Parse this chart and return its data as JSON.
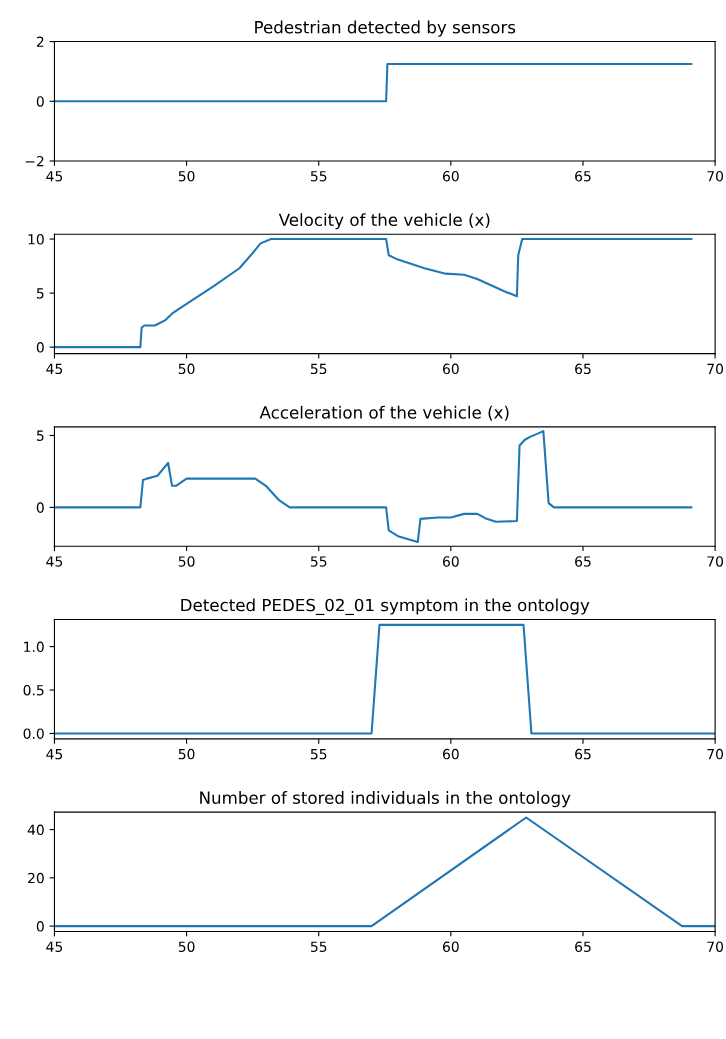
{
  "chart_data": [
    {
      "type": "line",
      "title": "Pedestrian detected by sensors",
      "xlim": [
        45,
        70
      ],
      "xticks": [
        45,
        50,
        55,
        60,
        65,
        70
      ],
      "ylim": [
        -2,
        2
      ],
      "yticks": [
        {
          "value": -2,
          "label": "−2"
        },
        0,
        2
      ],
      "series": [
        {
          "color": "#1f77b4",
          "x": [
            45,
            57.55,
            57.6,
            69.1
          ],
          "values": [
            0,
            0,
            1.25,
            1.25
          ]
        }
      ]
    },
    {
      "type": "line",
      "title": "Velocity of the vehicle (x)",
      "xlim": [
        45,
        70
      ],
      "xticks": [
        45,
        50,
        55,
        60,
        65,
        70
      ],
      "ylim": [
        -0.6,
        10.45
      ],
      "yticks": [
        0,
        5,
        10
      ],
      "series": [
        {
          "color": "#1f77b4",
          "x": [
            45,
            48.25,
            48.3,
            48.4,
            48.8,
            49.2,
            49.5,
            50,
            51,
            52,
            52.5,
            52.8,
            53.2,
            57.55,
            57.65,
            58,
            59,
            59.8,
            60.5,
            61,
            62,
            62.5,
            62.55,
            62.7,
            69.1
          ],
          "values": [
            0,
            0,
            1.8,
            2.0,
            2.0,
            2.5,
            3.2,
            4.0,
            5.6,
            7.3,
            8.7,
            9.6,
            10,
            10,
            8.5,
            8.1,
            7.3,
            6.8,
            6.7,
            6.3,
            5.2,
            4.7,
            8.5,
            10,
            10
          ]
        }
      ]
    },
    {
      "type": "line",
      "title": "Acceleration of the vehicle (x)",
      "xlim": [
        45,
        70
      ],
      "xticks": [
        45,
        50,
        55,
        60,
        65,
        70
      ],
      "ylim": [
        -2.7,
        5.6
      ],
      "yticks": [
        0,
        5
      ],
      "series": [
        {
          "color": "#1f77b4",
          "x": [
            45,
            48.25,
            48.35,
            48.5,
            48.9,
            49.3,
            49.45,
            49.6,
            50,
            51,
            52,
            52.6,
            53,
            53.5,
            53.9,
            57.55,
            57.65,
            58,
            58.75,
            58.85,
            59.5,
            60,
            60.5,
            61,
            61.3,
            61.7,
            62.5,
            62.6,
            62.8,
            63,
            63.5,
            63.7,
            63.9,
            69.1
          ],
          "values": [
            0,
            0,
            1.9,
            2.0,
            2.2,
            3.1,
            1.5,
            1.5,
            2.0,
            2.0,
            2.0,
            2.0,
            1.5,
            0.5,
            0,
            0,
            -1.6,
            -2.0,
            -2.4,
            -0.8,
            -0.7,
            -0.7,
            -0.45,
            -0.45,
            -0.75,
            -1.0,
            -0.95,
            4.3,
            4.7,
            4.9,
            5.3,
            0.3,
            0,
            0
          ]
        }
      ]
    },
    {
      "type": "line",
      "title": "Detected PEDES_02_01 symptom in the ontology",
      "xlim": [
        45,
        70
      ],
      "xticks": [
        45,
        50,
        55,
        60,
        65,
        70
      ],
      "ylim": [
        -0.0625,
        1.3125
      ],
      "yticks": [
        {
          "value": 0,
          "label": "0.0"
        },
        {
          "value": 0.5,
          "label": "0.5"
        },
        {
          "value": 1,
          "label": "1.0"
        }
      ],
      "series": [
        {
          "color": "#1f77b4",
          "x": [
            45,
            57,
            57.3,
            62.75,
            63.05,
            70
          ],
          "values": [
            0,
            0,
            1.25,
            1.25,
            0,
            0
          ]
        }
      ]
    },
    {
      "type": "line",
      "title": "Number of stored individuals in the ontology",
      "xlim": [
        45,
        70
      ],
      "xticks": [
        45,
        50,
        55,
        60,
        65,
        70
      ],
      "ylim": [
        -2.25,
        47.25
      ],
      "yticks": [
        0,
        20,
        40
      ],
      "series": [
        {
          "color": "#1f77b4",
          "x": [
            45,
            57,
            62.85,
            68.75,
            70
          ],
          "values": [
            0,
            0,
            45,
            0,
            0
          ]
        }
      ]
    }
  ]
}
